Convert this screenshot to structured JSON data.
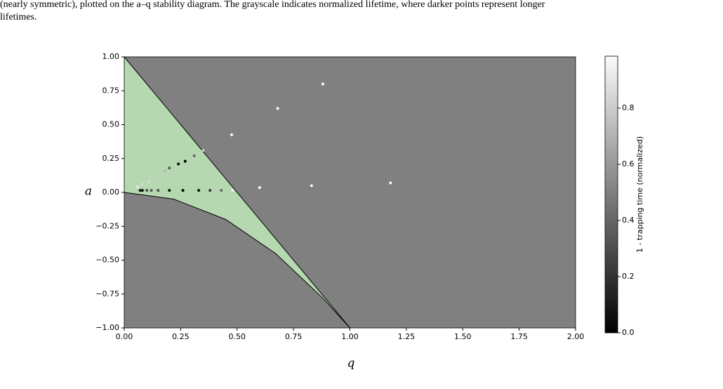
{
  "caption": [
    "(nearly symmetric), plotted on the a–q stability diagram. The grayscale indicates normalized lifetime, where darker points represent longer",
    "lifetimes."
  ],
  "chart_data": {
    "type": "scatter",
    "xlabel": "q",
    "ylabel": "a",
    "xlim": [
      0,
      2
    ],
    "ylim": [
      -1,
      1
    ],
    "xticks": [
      {
        "value": 0,
        "label": "0.00"
      },
      {
        "value": 0.25,
        "label": "0.25"
      },
      {
        "value": 0.5,
        "label": "0.50"
      },
      {
        "value": 0.75,
        "label": "0.75"
      },
      {
        "value": 1,
        "label": "1.00"
      },
      {
        "value": 1.25,
        "label": "1.25"
      },
      {
        "value": 1.5,
        "label": "1.50"
      },
      {
        "value": 1.75,
        "label": "1.75"
      },
      {
        "value": 2,
        "label": "2.00"
      }
    ],
    "yticks": [
      {
        "value": -1,
        "label": "−1.00"
      },
      {
        "value": -0.75,
        "label": "−0.75"
      },
      {
        "value": -0.5,
        "label": "−0.50"
      },
      {
        "value": -0.25,
        "label": "−0.25"
      },
      {
        "value": 0,
        "label": "0.00"
      },
      {
        "value": 0.25,
        "label": "0.25"
      },
      {
        "value": 0.5,
        "label": "0.50"
      },
      {
        "value": 0.75,
        "label": "0.75"
      },
      {
        "value": 1,
        "label": "1.00"
      }
    ],
    "background_color": "#808080",
    "stability_region": {
      "color": "#b5d8b0",
      "upper_boundary": {
        "x": [
          0,
          1
        ],
        "y": [
          1,
          -1
        ]
      },
      "lower_boundary": {
        "x": [
          0,
          0.22,
          0.45,
          0.67,
          0.88,
          1
        ],
        "y": [
          0,
          -0.05,
          -0.2,
          -0.45,
          -0.78,
          -1
        ]
      }
    },
    "colorbar": {
      "label": "1 - trapping time (normalized)",
      "cmap": "gray",
      "lim": [
        0,
        0.985
      ],
      "ticks": [
        {
          "value": 0,
          "label": "0.0"
        },
        {
          "value": 0.2,
          "label": "0.2"
        },
        {
          "value": 0.4,
          "label": "0.4"
        },
        {
          "value": 0.6,
          "label": "0.6"
        },
        {
          "value": 0.8,
          "label": "0.8"
        }
      ]
    },
    "series": [
      {
        "x": [
          0.88,
          0.68,
          0.476,
          0.35,
          0.31,
          0.27,
          0.24,
          0.2,
          0.18,
          0.14,
          0.11,
          0.08,
          0.06,
          0.07,
          0.08,
          0.1,
          0.12,
          0.15,
          0.2,
          0.26,
          0.33,
          0.38,
          0.43,
          0.48,
          0.6,
          0.83,
          1.18
        ],
        "values": [
          0.8,
          0.62,
          0.425,
          0.31,
          0.27,
          0.23,
          0.21,
          0.18,
          0.16,
          0.11,
          0.08,
          0.06,
          0.04,
          0.015,
          0.015,
          0.015,
          0.015,
          0.015,
          0.015,
          0.015,
          0.015,
          0.015,
          0.015,
          0.015,
          0.035,
          0.05,
          0.07
        ],
        "c": [
          0.98,
          0.98,
          0.98,
          0.8,
          0.4,
          0.0,
          0.05,
          0.35,
          0.7,
          0.8,
          0.85,
          0.85,
          0.9,
          0.1,
          0.0,
          0.3,
          0.35,
          0.3,
          0.05,
          0.0,
          0.05,
          0.2,
          0.4,
          0.95,
          0.98,
          0.98,
          0.98
        ]
      }
    ]
  }
}
